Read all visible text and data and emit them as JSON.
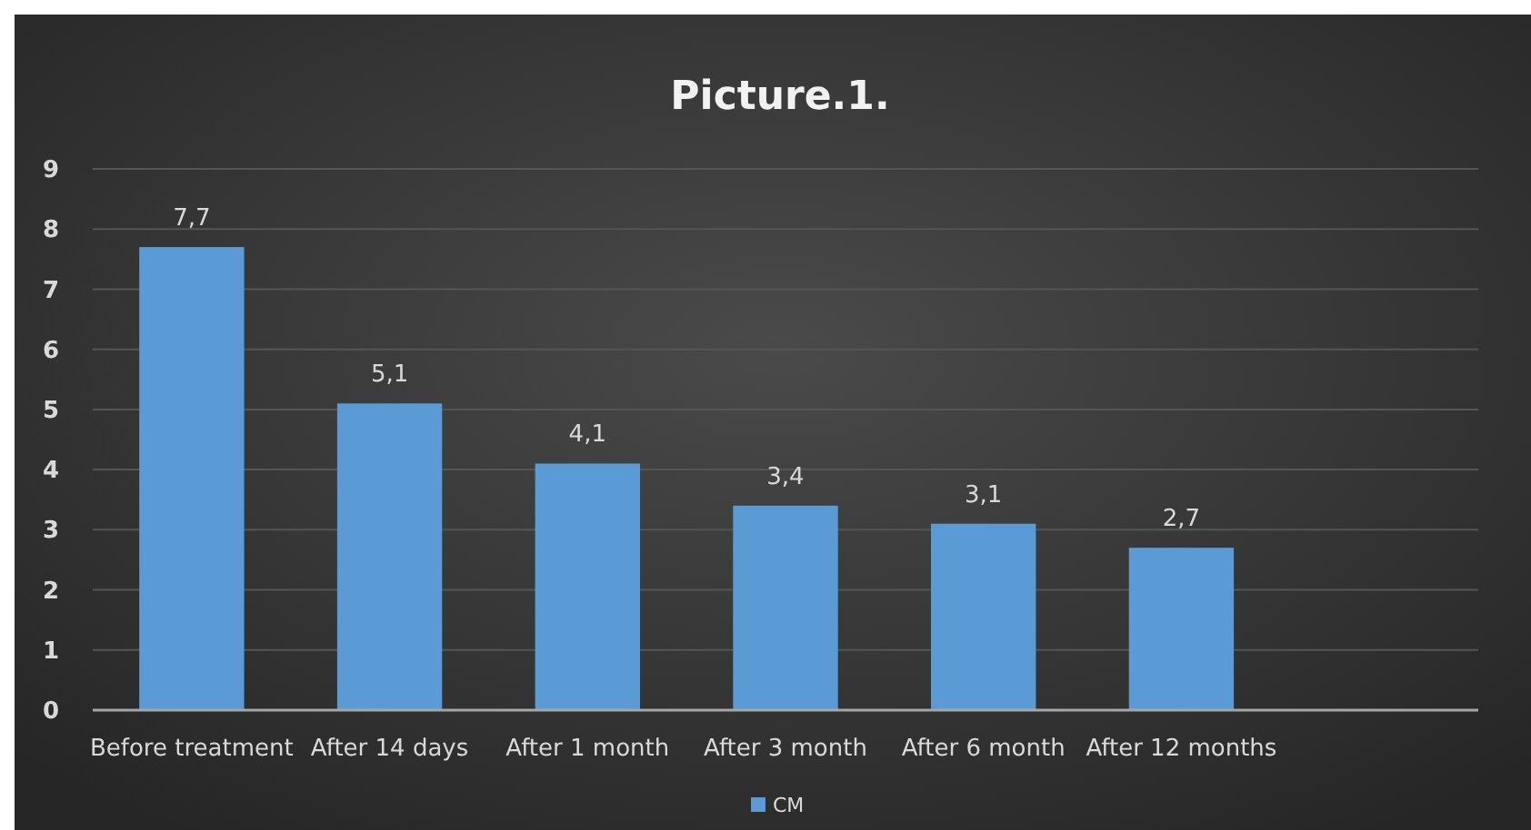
{
  "chart_data": {
    "type": "bar",
    "title": "Picture.1.",
    "categories": [
      "Before treatment",
      "After 14 days",
      "After 1 month",
      "After 3 month",
      "After 6 month",
      "After 12 months",
      null
    ],
    "series": [
      {
        "name": "CM",
        "color": "#5b9bd5",
        "values": [
          7.7,
          5.1,
          4.1,
          3.4,
          3.1,
          2.7,
          null
        ],
        "value_labels": [
          "7,7",
          "5,1",
          "4,1",
          "3,4",
          "3,1",
          "2,7",
          null
        ]
      }
    ],
    "ylim": [
      0,
      9
    ],
    "yticks": [
      0,
      1,
      2,
      3,
      4,
      5,
      6,
      7,
      8,
      9
    ],
    "grid": "y",
    "legend": "bottom"
  }
}
